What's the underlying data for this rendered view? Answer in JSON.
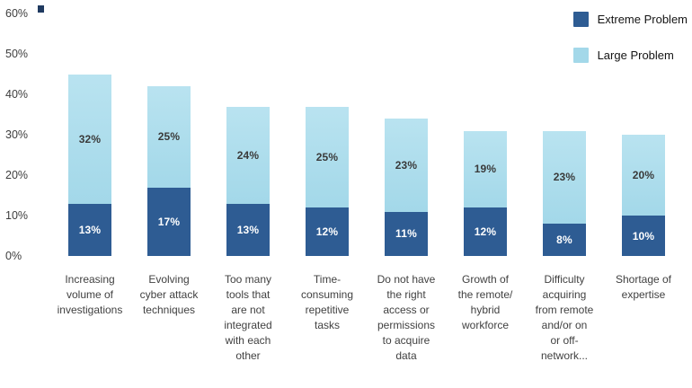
{
  "chart_data": {
    "type": "bar",
    "stacked": true,
    "title": "",
    "xlabel": "",
    "ylabel": "",
    "ylim": [
      0,
      60
    ],
    "yticks": [
      "0%",
      "10%",
      "20%",
      "30%",
      "40%",
      "50%",
      "60%"
    ],
    "grid": false,
    "legend_position": "top-right",
    "value_suffix": "%",
    "categories": [
      "Increasing volume of investigations",
      "Evolving cyber attack techniques",
      "Too many tools that are not integrated with each other",
      "Time-consuming repetitive tasks",
      "Do not have the right access or permissions to acquire data",
      "Growth of the remote/ hybrid workforce",
      "Difficulty acquiring from remote and/or on or off-network...",
      "Shortage of expertise"
    ],
    "category_lines": [
      [
        "Increasing",
        "volume of",
        "investigations"
      ],
      [
        "Evolving",
        "cyber attack",
        "techniques"
      ],
      [
        "Too many",
        "tools that",
        "are not",
        "integrated",
        "with each",
        "other"
      ],
      [
        "Time-",
        "consuming",
        "repetitive",
        "tasks"
      ],
      [
        "Do not have",
        "the right",
        "access or",
        "permissions",
        "to acquire",
        "data"
      ],
      [
        "Growth of",
        "the remote/",
        "hybrid",
        "workforce"
      ],
      [
        "Difficulty",
        "acquiring",
        "from remote",
        "and/or on",
        "or off-",
        "network..."
      ],
      [
        "Shortage of",
        "expertise"
      ]
    ],
    "series": [
      {
        "name": "Extreme Problem",
        "color": "#2e5c93",
        "label_color": "#ffffff",
        "values": [
          13,
          17,
          13,
          12,
          11,
          12,
          8,
          10
        ]
      },
      {
        "name": "Large Problem",
        "color": "#a3d8e9",
        "gradient_top": "#b9e3f0",
        "label_color": "#3a3a3a",
        "values": [
          32,
          25,
          24,
          25,
          23,
          19,
          23,
          20
        ]
      }
    ]
  }
}
